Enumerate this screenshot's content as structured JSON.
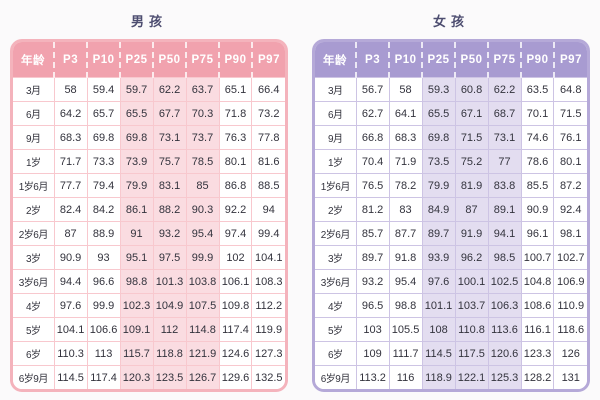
{
  "chart_data": [
    {
      "type": "table",
      "title": "男孩",
      "columns": [
        "年龄",
        "P3",
        "P10",
        "P25",
        "P50",
        "P75",
        "P90",
        "P97"
      ],
      "shaded_columns": [
        3,
        4,
        5
      ],
      "theme": {
        "title_color": "#4d4d70",
        "header_bg": "#f1a2ae",
        "header_text": "#ffffff",
        "border": "#f4b3bc",
        "grid": "#f8c8ce",
        "shaded_cell": "#fadce1",
        "cell_bg": "#ffffff",
        "text": "#33333d"
      },
      "rows": [
        {
          "label": "3月",
          "values": [
            "58",
            "59.4",
            "59.7",
            "62.2",
            "63.7",
            "65.1",
            "66.4"
          ]
        },
        {
          "label": "6月",
          "values": [
            "64.2",
            "65.7",
            "65.5",
            "67.7",
            "70.3",
            "71.8",
            "73.2"
          ]
        },
        {
          "label": "9月",
          "values": [
            "68.3",
            "69.8",
            "69.8",
            "73.1",
            "73.7",
            "76.3",
            "77.8"
          ]
        },
        {
          "label": "1岁",
          "values": [
            "71.7",
            "73.3",
            "73.9",
            "75.7",
            "78.5",
            "80.1",
            "81.6"
          ]
        },
        {
          "label": "1岁6月",
          "values": [
            "77.7",
            "79.4",
            "79.9",
            "83.1",
            "85",
            "86.8",
            "88.5"
          ]
        },
        {
          "label": "2岁",
          "values": [
            "82.4",
            "84.2",
            "86.1",
            "88.2",
            "90.3",
            "92.2",
            "94"
          ]
        },
        {
          "label": "2岁6月",
          "values": [
            "87",
            "88.9",
            "91",
            "93.2",
            "95.4",
            "97.4",
            "99.4"
          ]
        },
        {
          "label": "3岁",
          "values": [
            "90.9",
            "93",
            "95.1",
            "97.5",
            "99.9",
            "102",
            "104.1"
          ]
        },
        {
          "label": "3岁6月",
          "values": [
            "94.4",
            "96.6",
            "98.8",
            "101.3",
            "103.8",
            "106.1",
            "108.3"
          ]
        },
        {
          "label": "4岁",
          "values": [
            "97.6",
            "99.9",
            "102.3",
            "104.9",
            "107.5",
            "109.8",
            "112.2"
          ]
        },
        {
          "label": "5岁",
          "values": [
            "104.1",
            "106.6",
            "109.1",
            "112",
            "114.8",
            "117.4",
            "119.9"
          ]
        },
        {
          "label": "6岁",
          "values": [
            "110.3",
            "113",
            "115.7",
            "118.8",
            "121.9",
            "124.6",
            "127.3"
          ]
        },
        {
          "label": "6岁9月",
          "values": [
            "114.5",
            "117.4",
            "120.3",
            "123.5",
            "126.7",
            "129.6",
            "132.5"
          ]
        }
      ]
    },
    {
      "type": "table",
      "title": "女孩",
      "columns": [
        "年龄",
        "P3",
        "P10",
        "P25",
        "P50",
        "P75",
        "P90",
        "P97"
      ],
      "shaded_columns": [
        3,
        4,
        5
      ],
      "theme": {
        "title_color": "#4d4d70",
        "header_bg": "#a89bd1",
        "header_text": "#ffffff",
        "border": "#b5a9d8",
        "grid": "#cdc4e4",
        "shaded_cell": "#e3ddf0",
        "cell_bg": "#ffffff",
        "text": "#33333d"
      },
      "rows": [
        {
          "label": "3月",
          "values": [
            "56.7",
            "58",
            "59.3",
            "60.8",
            "62.2",
            "63.5",
            "64.8"
          ]
        },
        {
          "label": "6月",
          "values": [
            "62.7",
            "64.1",
            "65.5",
            "67.1",
            "68.7",
            "70.1",
            "71.5"
          ]
        },
        {
          "label": "9月",
          "values": [
            "66.8",
            "68.3",
            "69.8",
            "71.5",
            "73.1",
            "74.6",
            "76.1"
          ]
        },
        {
          "label": "1岁",
          "values": [
            "70.4",
            "71.9",
            "73.5",
            "75.2",
            "77",
            "78.6",
            "80.1"
          ]
        },
        {
          "label": "1岁6月",
          "values": [
            "76.5",
            "78.2",
            "79.9",
            "81.9",
            "83.8",
            "85.5",
            "87.2"
          ]
        },
        {
          "label": "2岁",
          "values": [
            "81.2",
            "83",
            "84.9",
            "87",
            "89.1",
            "90.9",
            "92.4"
          ]
        },
        {
          "label": "2岁6月",
          "values": [
            "85.7",
            "87.7",
            "89.7",
            "91.9",
            "94.1",
            "96.1",
            "98.1"
          ]
        },
        {
          "label": "3岁",
          "values": [
            "89.7",
            "91.8",
            "93.9",
            "96.2",
            "98.5",
            "100.7",
            "102.7"
          ]
        },
        {
          "label": "3岁6月",
          "values": [
            "93.2",
            "95.4",
            "97.6",
            "100.1",
            "102.5",
            "104.8",
            "106.9"
          ]
        },
        {
          "label": "4岁",
          "values": [
            "96.5",
            "98.8",
            "101.1",
            "103.7",
            "106.3",
            "108.6",
            "110.9"
          ]
        },
        {
          "label": "5岁",
          "values": [
            "103",
            "105.5",
            "108",
            "110.8",
            "113.6",
            "116.1",
            "118.6"
          ]
        },
        {
          "label": "6岁",
          "values": [
            "109",
            "111.7",
            "114.5",
            "117.5",
            "120.6",
            "123.3",
            "126"
          ]
        },
        {
          "label": "6岁9月",
          "values": [
            "113.2",
            "116",
            "118.9",
            "122.1",
            "125.3",
            "128.2",
            "131"
          ]
        }
      ]
    }
  ]
}
